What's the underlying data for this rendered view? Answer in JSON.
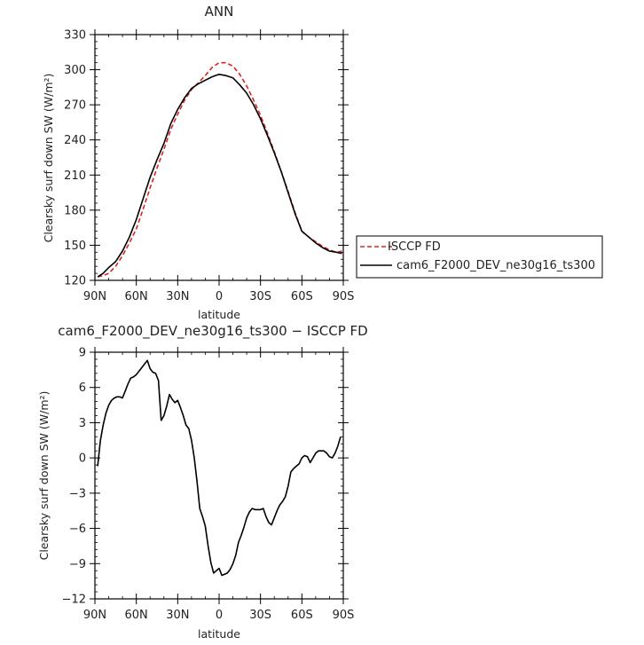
{
  "chart_data": [
    {
      "type": "line",
      "title": "ANN",
      "xlabel": "latitude",
      "ylabel": "Clearsky surf down SW (W/m²)",
      "xlim": [
        -90,
        90
      ],
      "ylim": [
        120,
        330
      ],
      "x_ticks": [
        -90,
        -60,
        -30,
        0,
        30,
        60,
        90
      ],
      "x_tick_labels": [
        "90N",
        "60N",
        "30N",
        "0",
        "30S",
        "60S",
        "90S"
      ],
      "y_ticks": [
        120,
        150,
        180,
        210,
        240,
        270,
        300,
        330
      ],
      "y_tick_labels": [
        "120",
        "150",
        "180",
        "210",
        "240",
        "270",
        "300",
        "330"
      ],
      "grid": false,
      "legend_position": "right",
      "series": [
        {
          "name": "ISCCP FD",
          "color": "#dd2222",
          "dash": "dashed",
          "x": [
            -88,
            -84,
            -80,
            -75,
            -70,
            -65,
            -60,
            -55,
            -50,
            -45,
            -40,
            -35,
            -30,
            -25,
            -20,
            -15,
            -10,
            -5,
            0,
            5,
            10,
            15,
            20,
            25,
            30,
            35,
            40,
            45,
            50,
            55,
            60,
            65,
            70,
            75,
            80,
            85,
            89
          ],
          "y": [
            123,
            124,
            126,
            132,
            141,
            152,
            164,
            181,
            199,
            216,
            232,
            249,
            262,
            274,
            283,
            289,
            295,
            302,
            306,
            306,
            303,
            296,
            286,
            274,
            261,
            246,
            230,
            213,
            196,
            178,
            162,
            157,
            153,
            149,
            146,
            144,
            145
          ]
        },
        {
          "name": "cam6_F2000_DEV_ne30g16_ts300",
          "color": "#000000",
          "dash": "solid",
          "x": [
            -88,
            -84,
            -80,
            -75,
            -70,
            -65,
            -60,
            -55,
            -50,
            -45,
            -40,
            -35,
            -30,
            -25,
            -20,
            -15,
            -10,
            -5,
            0,
            5,
            10,
            15,
            20,
            25,
            30,
            35,
            40,
            45,
            50,
            55,
            60,
            65,
            70,
            75,
            80,
            85,
            89
          ],
          "y": [
            123,
            126,
            131,
            136,
            145,
            157,
            172,
            190,
            208,
            223,
            237,
            254,
            266,
            276,
            284,
            288,
            291,
            294,
            296,
            295,
            293,
            287,
            280,
            270,
            258,
            244,
            229,
            213,
            195,
            177,
            162,
            157,
            152,
            148,
            145,
            144,
            143
          ]
        }
      ]
    },
    {
      "type": "line",
      "title": "cam6_F2000_DEV_ne30g16_ts300 − ISCCP FD",
      "xlabel": "latitude",
      "ylabel": "Clearsky surf down SW (W/m²)",
      "xlim": [
        -90,
        90
      ],
      "ylim": [
        -12,
        9
      ],
      "x_ticks": [
        -90,
        -60,
        -30,
        0,
        30,
        60,
        90
      ],
      "x_tick_labels": [
        "90N",
        "60N",
        "30N",
        "0",
        "30S",
        "60S",
        "90S"
      ],
      "y_ticks": [
        -12,
        -9,
        -6,
        -3,
        0,
        3,
        6,
        9
      ],
      "y_tick_labels": [
        "−12",
        "−9",
        "−6",
        "−3",
        "0",
        "3",
        "6",
        "9"
      ],
      "grid": false,
      "series": [
        {
          "color": "#000000",
          "dash": "solid",
          "x": [
            -88,
            -86,
            -84,
            -82,
            -80,
            -78,
            -76,
            -74,
            -72,
            -70,
            -68,
            -66,
            -64,
            -62,
            -60,
            -58,
            -56,
            -54,
            -52,
            -50,
            -48,
            -46,
            -44,
            -42,
            -40,
            -38,
            -36,
            -34,
            -32,
            -30,
            -28,
            -26,
            -24,
            -22,
            -20,
            -18,
            -16,
            -14,
            -12,
            -10,
            -8,
            -6,
            -4,
            -2,
            0,
            2,
            4,
            6,
            8,
            10,
            12,
            14,
            16,
            18,
            20,
            22,
            24,
            26,
            28,
            30,
            32,
            34,
            36,
            38,
            40,
            42,
            44,
            46,
            48,
            50,
            52,
            54,
            56,
            58,
            60,
            62,
            64,
            66,
            68,
            70,
            72,
            74,
            76,
            78,
            80,
            82,
            84,
            86,
            88
          ],
          "y": [
            -0.7,
            1.5,
            2.8,
            3.8,
            4.5,
            4.9,
            5.1,
            5.2,
            5.2,
            5.1,
            5.7,
            6.3,
            6.8,
            6.9,
            7.1,
            7.4,
            7.7,
            8.0,
            8.3,
            7.6,
            7.3,
            7.2,
            6.6,
            3.2,
            3.6,
            4.4,
            5.4,
            5.0,
            4.7,
            4.9,
            4.3,
            3.6,
            2.8,
            2.5,
            1.5,
            0.0,
            -2.0,
            -4.3,
            -5.0,
            -5.8,
            -7.5,
            -8.9,
            -9.8,
            -9.6,
            -9.4,
            -10.0,
            -9.9,
            -9.8,
            -9.5,
            -9.0,
            -8.3,
            -7.2,
            -6.6,
            -5.9,
            -5.1,
            -4.6,
            -4.3,
            -4.4,
            -4.4,
            -4.4,
            -4.3,
            -5.0,
            -5.5,
            -5.7,
            -5.1,
            -4.5,
            -4.0,
            -3.7,
            -3.3,
            -2.4,
            -1.2,
            -0.9,
            -0.7,
            -0.5,
            0.0,
            0.2,
            0.1,
            -0.4,
            0.0,
            0.4,
            0.6,
            0.6,
            0.6,
            0.4,
            0.1,
            0.0,
            0.4,
            1.0,
            1.8
          ]
        }
      ]
    }
  ]
}
